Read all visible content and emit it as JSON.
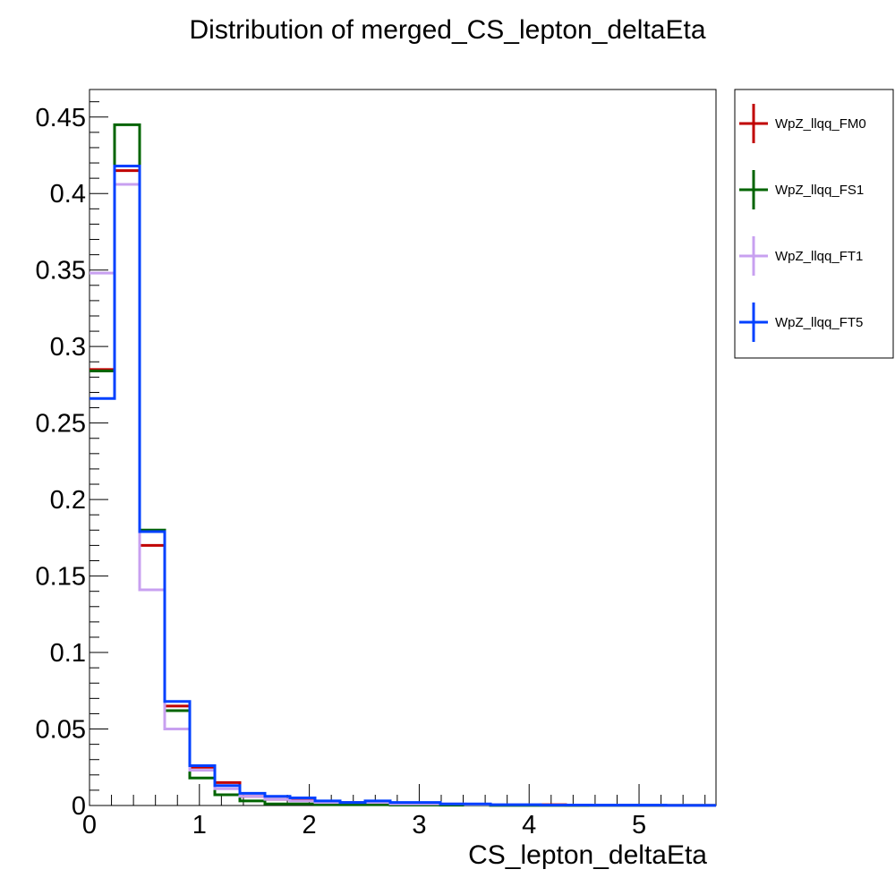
{
  "chart_data": {
    "type": "histogram-step",
    "title": "Distribution of merged_CS_lepton_deltaEta",
    "xlabel": "CS_lepton_deltaEta",
    "ylabel": "",
    "xlim": [
      0,
      5.7
    ],
    "ylim": [
      0,
      0.468
    ],
    "bin_width": 0.228,
    "x_ticks": [
      0,
      1,
      2,
      3,
      4,
      5
    ],
    "y_ticks": [
      0,
      0.05,
      0.1,
      0.15,
      0.2,
      0.25,
      0.3,
      0.35,
      0.4,
      0.45
    ],
    "legend_position": "right-outside-top",
    "series": [
      {
        "name": "WpZ_llqq_FM0",
        "color": "#c00000",
        "values": [
          0.285,
          0.415,
          0.17,
          0.065,
          0.025,
          0.015,
          0.006,
          0.004,
          0.004,
          0.002,
          0.002,
          0.002,
          0.001,
          0.001,
          0.0005,
          0.0005,
          0.0003,
          0.0003,
          0.0005,
          0.0002,
          0.0002,
          0.0002,
          0.0001,
          0.0001,
          0.0001
        ]
      },
      {
        "name": "WpZ_llqq_FS1",
        "color": "#006400",
        "values": [
          0.284,
          0.445,
          0.18,
          0.062,
          0.018,
          0.007,
          0.003,
          0.001,
          0.001,
          0.0005,
          0.0005,
          0.0005,
          0.0003,
          0.0003,
          0.0002,
          0.0002,
          0.0001,
          0.0001,
          0.0001,
          0.0001,
          0.0001,
          0.0001,
          0.0001,
          0.0001,
          0.0001
        ]
      },
      {
        "name": "WpZ_llqq_FT1",
        "color": "#c8a0f0",
        "values": [
          0.348,
          0.406,
          0.141,
          0.05,
          0.023,
          0.011,
          0.006,
          0.004,
          0.003,
          0.002,
          0.002,
          0.002,
          0.001,
          0.001,
          0.001,
          0.0005,
          0.0005,
          0.0005,
          0.0003,
          0.0003,
          0.0002,
          0.0002,
          0.0002,
          0.0001,
          0.0001
        ]
      },
      {
        "name": "WpZ_llqq_FT5",
        "color": "#0040ff",
        "values": [
          0.266,
          0.418,
          0.179,
          0.068,
          0.026,
          0.013,
          0.008,
          0.006,
          0.005,
          0.003,
          0.002,
          0.003,
          0.002,
          0.002,
          0.001,
          0.001,
          0.0005,
          0.0005,
          0.0003,
          0.0003,
          0.0002,
          0.0002,
          0.0002,
          0.0001,
          0.0001
        ]
      }
    ]
  }
}
